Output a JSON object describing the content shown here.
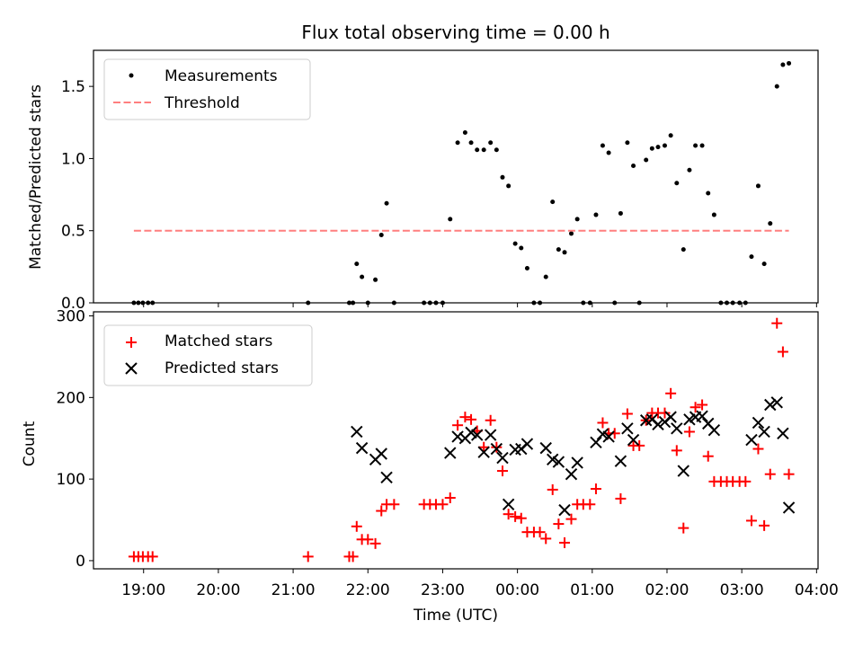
{
  "chart_data": {
    "type": "scatter",
    "title": "Flux total observing time = 0.00 h",
    "xlabel": "Time (UTC)",
    "x_ticks": [
      "19:00",
      "20:00",
      "21:00",
      "22:00",
      "23:00",
      "00:00",
      "01:00",
      "02:00",
      "03:00",
      "04:00"
    ],
    "x_tick_hours": [
      19,
      20,
      21,
      22,
      23,
      24,
      25,
      26,
      27,
      28
    ],
    "xlim_hours": [
      18.33,
      28.02
    ],
    "panels": [
      {
        "name": "ratio",
        "ylabel": "Matched/Predicted stars",
        "ylim": [
          0,
          1.75
        ],
        "y_ticks": [
          0.0,
          0.5,
          1.0,
          1.5
        ],
        "y_tick_labels": [
          "0.0",
          "0.5",
          "1.0",
          "1.5"
        ],
        "legend_position": "upper left",
        "series": [
          {
            "name": "Measurements",
            "kind": "dot",
            "color": "#000000",
            "x_hours": [
              18.87,
              18.93,
              18.99,
              19.06,
              19.12,
              21.2,
              21.75,
              21.8,
              21.85,
              21.92,
              22.0,
              22.1,
              22.18,
              22.25,
              22.35,
              22.75,
              22.83,
              22.91,
              23.0,
              23.1,
              23.2,
              23.3,
              23.38,
              23.46,
              23.55,
              23.64,
              23.72,
              23.8,
              23.88,
              23.97,
              24.05,
              24.13,
              24.22,
              24.3,
              24.38,
              24.47,
              24.55,
              24.63,
              24.72,
              24.8,
              24.88,
              24.97,
              25.05,
              25.14,
              25.22,
              25.3,
              25.38,
              25.47,
              25.55,
              25.63,
              25.72,
              25.8,
              25.88,
              25.97,
              26.05,
              26.13,
              26.22,
              26.3,
              26.38,
              26.47,
              26.55,
              26.63,
              26.72,
              26.8,
              26.88,
              26.97,
              27.05,
              27.13,
              27.22,
              27.3,
              27.38,
              27.47,
              27.55,
              27.63
            ],
            "y": [
              0,
              0,
              0,
              0,
              0,
              0,
              0,
              0,
              0.27,
              0.18,
              0,
              0.16,
              0.47,
              0.69,
              0,
              0,
              0,
              0,
              0,
              0.58,
              1.11,
              1.18,
              1.11,
              1.06,
              1.06,
              1.11,
              1.06,
              0.87,
              0.81,
              0.41,
              0.38,
              0.24,
              0,
              0,
              0.18,
              0.7,
              0.37,
              0.35,
              0.48,
              0.58,
              0,
              0,
              0.61,
              1.09,
              1.04,
              0,
              0.62,
              1.11,
              0.95,
              0,
              0.99,
              1.07,
              1.08,
              1.09,
              1.16,
              0.83,
              0.37,
              0.92,
              1.09,
              1.09,
              0.76,
              0.61,
              0,
              0,
              0,
              0,
              0,
              0.32,
              0.81,
              0.27,
              0.55,
              1.5,
              1.65,
              1.66
            ]
          },
          {
            "name": "Threshold",
            "kind": "dashed-line",
            "color": "#ff7f7f",
            "x_hours": [
              18.87,
              27.63
            ],
            "y": [
              0.5,
              0.5
            ]
          }
        ]
      },
      {
        "name": "counts",
        "ylabel": "Count",
        "ylim": [
          -10,
          305
        ],
        "y_ticks": [
          0,
          100,
          200,
          300
        ],
        "y_tick_labels": [
          "0",
          "100",
          "200",
          "300"
        ],
        "legend_position": "upper left",
        "series": [
          {
            "name": "Matched stars",
            "kind": "plus",
            "color": "#ff0000",
            "x_hours": [
              18.87,
              18.93,
              18.99,
              19.06,
              19.12,
              21.2,
              21.75,
              21.8,
              21.85,
              21.92,
              22.0,
              22.1,
              22.18,
              22.25,
              22.35,
              22.75,
              22.83,
              22.91,
              23.0,
              23.1,
              23.2,
              23.3,
              23.38,
              23.46,
              23.55,
              23.64,
              23.72,
              23.8,
              23.88,
              23.97,
              24.05,
              24.13,
              24.22,
              24.3,
              24.38,
              24.47,
              24.55,
              24.63,
              24.72,
              24.8,
              24.88,
              24.97,
              25.05,
              25.14,
              25.22,
              25.3,
              25.38,
              25.47,
              25.55,
              25.63,
              25.72,
              25.8,
              25.88,
              25.97,
              26.05,
              26.13,
              26.22,
              26.3,
              26.38,
              26.47,
              26.55,
              26.63,
              26.72,
              26.8,
              26.88,
              26.97,
              27.05,
              27.13,
              27.22,
              27.3,
              27.38,
              27.47,
              27.55,
              27.63
            ],
            "y": [
              5,
              5,
              5,
              5,
              5,
              5,
              5,
              5,
              42,
              26,
              26,
              21,
              61,
              69,
              69,
              69,
              69,
              69,
              69,
              77,
              166,
              176,
              173,
              159,
              139,
              172,
              139,
              110,
              57,
              54,
              52,
              35,
              35,
              35,
              27,
              87,
              45,
              22,
              51,
              69,
              69,
              69,
              88,
              169,
              156,
              156,
              76,
              180,
              141,
              141,
              172,
              181,
              181,
              181,
              205,
              135,
              40,
              158,
              188,
              191,
              128,
              97,
              97,
              97,
              97,
              97,
              97,
              49,
              137,
              43,
              106,
              291,
              256,
              106
            ]
          },
          {
            "name": "Predicted stars",
            "kind": "x",
            "color": "#000000",
            "x_hours": [
              21.85,
              21.92,
              22.1,
              22.18,
              22.25,
              23.1,
              23.2,
              23.3,
              23.38,
              23.46,
              23.55,
              23.64,
              23.72,
              23.8,
              23.88,
              23.97,
              24.05,
              24.13,
              24.38,
              24.47,
              24.55,
              24.63,
              24.72,
              24.8,
              25.05,
              25.14,
              25.22,
              25.38,
              25.47,
              25.55,
              25.72,
              25.8,
              25.88,
              25.97,
              26.05,
              26.13,
              26.22,
              26.3,
              26.38,
              26.47,
              26.55,
              26.63,
              27.13,
              27.22,
              27.3,
              27.38,
              27.47,
              27.55,
              27.63
            ],
            "y": [
              158,
              138,
              124,
              131,
              102,
              132,
              152,
              150,
              157,
              154,
              133,
              154,
              137,
              126,
              69,
              136,
              137,
              143,
              138,
              124,
              121,
              62,
              106,
              120,
              145,
              155,
              152,
              122,
              162,
              148,
              172,
              173,
              167,
              170,
              176,
              162,
              110,
              173,
              176,
              177,
              168,
              160,
              148,
              169,
              158,
              191,
              194,
              156,
              65
            ]
          }
        ]
      }
    ]
  }
}
